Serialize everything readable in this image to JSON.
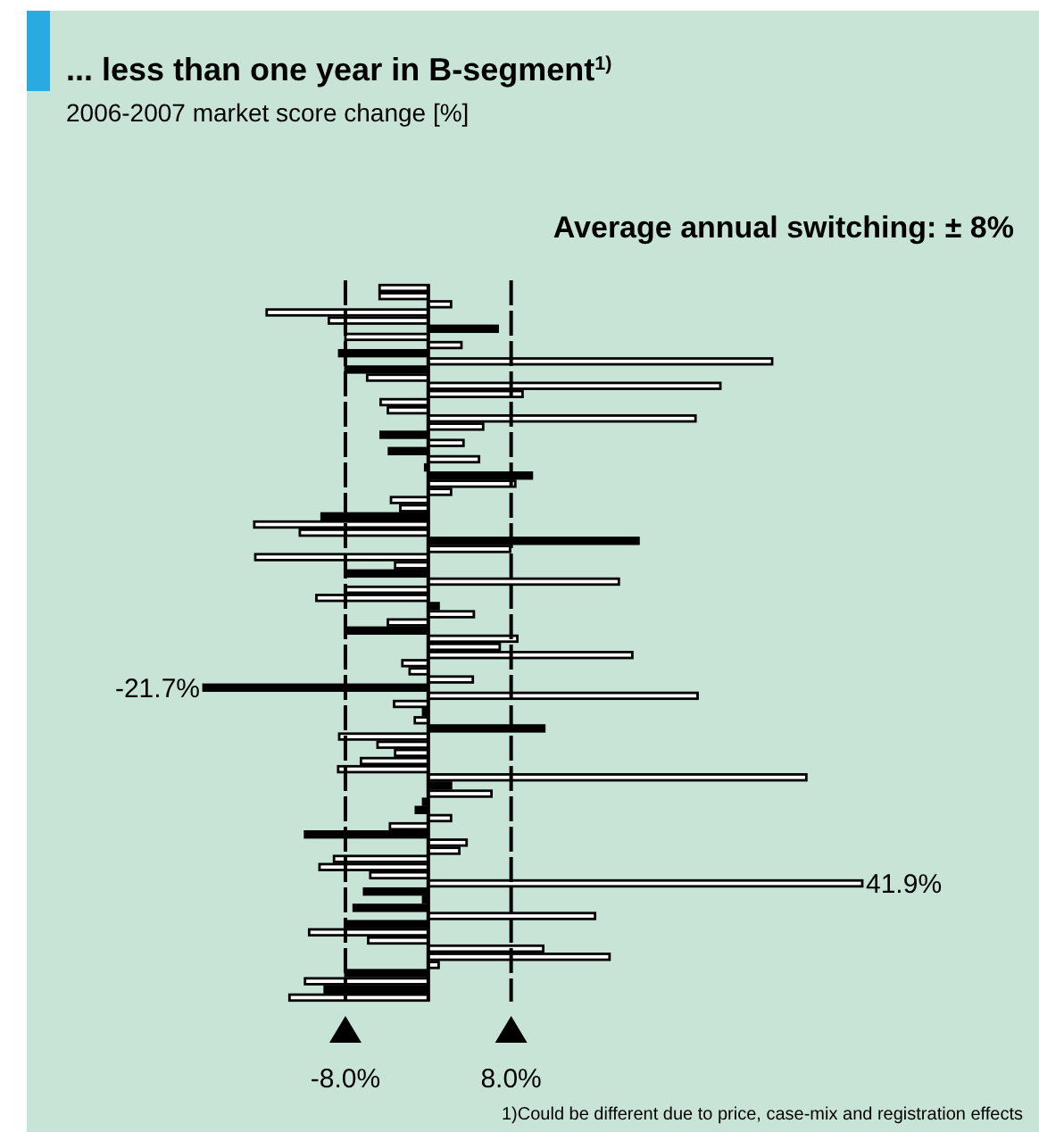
{
  "chart_data": {
    "type": "bar",
    "orientation": "horizontal",
    "title": "... less than one year in B-segment$^{1)}$",
    "subtitle": "2006-2007 market score change [%]",
    "annotations": [
      "Average annual switching: ± 8%",
      "1)Could be different due to price, case-mix and registration effects"
    ],
    "categories": [
      null,
      null,
      null,
      null,
      null,
      null,
      null,
      null,
      null,
      null,
      null,
      null,
      null,
      null,
      null,
      null,
      null,
      null,
      null,
      null,
      null,
      null,
      null,
      null,
      null,
      null,
      null,
      null,
      null,
      null,
      null,
      null,
      null,
      null,
      null,
      null,
      null,
      null,
      null,
      null,
      null,
      null,
      null,
      null,
      null,
      null,
      null,
      null,
      null,
      null,
      null,
      null,
      null,
      null,
      null,
      null,
      null,
      null,
      null,
      null,
      null,
      null,
      null,
      null,
      null,
      null,
      null,
      null,
      null,
      null,
      null,
      null,
      null,
      null,
      null,
      null,
      null,
      null,
      null,
      null,
      null,
      null,
      null,
      null,
      null,
      null,
      null,
      null
    ],
    "values": [
      -4.7,
      -4.7,
      2.2,
      -15.6,
      -9.6,
      6.7,
      -8.0,
      3.2,
      -8.6,
      33.2,
      -8.0,
      -5.9,
      28.2,
      9.1,
      -4.6,
      -3.9,
      25.8,
      5.3,
      -4.6,
      3.4,
      -3.8,
      4.9,
      -0.3,
      10.0,
      8.4,
      2.2,
      -3.6,
      -2.7,
      -10.3,
      -16.8,
      -12.4,
      20.3,
      7.9,
      -16.7,
      -3.2,
      -8.0,
      18.4,
      -8.0,
      -10.8,
      1.0,
      4.4,
      -3.9,
      -8.0,
      8.6,
      6.9,
      19.7,
      -2.5,
      -1.8,
      4.3,
      -21.7,
      26.0,
      -3.3,
      -0.5,
      -1.3,
      11.2,
      -8.6,
      -4.9,
      -3.2,
      -6.5,
      -8.7,
      36.5,
      2.2,
      6.1,
      -0.5,
      -1.2,
      2.2,
      -3.7,
      -11.9,
      3.7,
      3.0,
      -9.1,
      -10.5,
      -5.6,
      41.9,
      -6.2,
      -0.5,
      -7.2,
      16.1,
      -8.0,
      -11.5,
      -5.8,
      11.1,
      17.5,
      1.0,
      -8.0,
      -11.9,
      -10.0,
      -13.4
    ],
    "colors": [
      "#ffffff",
      "#ffffff",
      "#ffffff",
      "#ffffff",
      "#ffffff",
      "#000000",
      "#ffffff",
      "#ffffff",
      "#000000",
      "#ffffff",
      "#000000",
      "#ffffff",
      "#ffffff",
      "#ffffff",
      "#ffffff",
      "#ffffff",
      "#ffffff",
      "#ffffff",
      "#000000",
      "#ffffff",
      "#000000",
      "#ffffff",
      "#000000",
      "#000000",
      "#ffffff",
      "#ffffff",
      "#ffffff",
      "#ffffff",
      "#000000",
      "#ffffff",
      "#ffffff",
      "#000000",
      "#ffffff",
      "#ffffff",
      "#ffffff",
      "#000000",
      "#ffffff",
      "#ffffff",
      "#ffffff",
      "#000000",
      "#ffffff",
      "#ffffff",
      "#000000",
      "#ffffff",
      "#ffffff",
      "#ffffff",
      "#ffffff",
      "#ffffff",
      "#ffffff",
      "#000000",
      "#ffffff",
      "#ffffff",
      "#000000",
      "#ffffff",
      "#000000",
      "#ffffff",
      "#ffffff",
      "#ffffff",
      "#ffffff",
      "#ffffff",
      "#ffffff",
      "#000000",
      "#ffffff",
      "#000000",
      "#000000",
      "#ffffff",
      "#ffffff",
      "#000000",
      "#ffffff",
      "#ffffff",
      "#ffffff",
      "#ffffff",
      "#ffffff",
      "#ffffff",
      "#000000",
      "#000000",
      "#000000",
      "#ffffff",
      "#000000",
      "#ffffff",
      "#ffffff",
      "#ffffff",
      "#ffffff",
      "#ffffff",
      "#000000",
      "#ffffff",
      "#000000",
      "#ffffff"
    ],
    "value_labels": [
      null,
      null,
      null,
      null,
      null,
      null,
      null,
      null,
      null,
      null,
      null,
      null,
      null,
      null,
      null,
      null,
      null,
      null,
      null,
      null,
      null,
      null,
      null,
      null,
      null,
      null,
      null,
      null,
      null,
      null,
      null,
      null,
      null,
      null,
      null,
      null,
      null,
      null,
      null,
      null,
      null,
      null,
      null,
      null,
      null,
      null,
      null,
      null,
      null,
      "-21.7%",
      null,
      null,
      null,
      null,
      null,
      null,
      null,
      null,
      null,
      null,
      null,
      null,
      null,
      null,
      null,
      null,
      null,
      null,
      null,
      null,
      null,
      null,
      null,
      "41.9%",
      null,
      null,
      null,
      null,
      null,
      null,
      null,
      null,
      null,
      null,
      null,
      null,
      null,
      null
    ],
    "xticks": [
      {
        "value": -8,
        "label": "-8.0%"
      },
      {
        "value": 8,
        "label": "8.0%"
      }
    ],
    "xlim": [
      -21.7,
      41.9
    ],
    "tick_labels": "x",
    "ref_lines": [
      {
        "axis": "x",
        "value": -8,
        "line_style": "dashed",
        "color": "#000000"
      },
      {
        "axis": "x",
        "value": 8,
        "line_style": "dashed",
        "color": "#000000"
      }
    ]
  }
}
